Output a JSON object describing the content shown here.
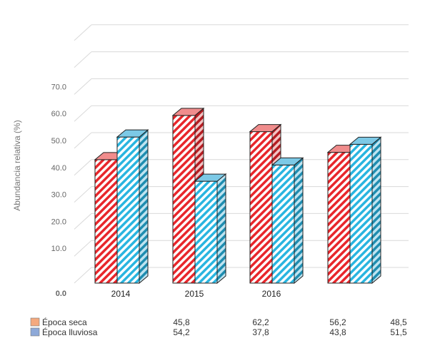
{
  "chart_data": {
    "type": "bar",
    "ylabel": "Abundancia relativa (%)",
    "categories": [
      "2014",
      "2015",
      "2016",
      ""
    ],
    "y_tick_labels": [
      "0.0",
      "10.0",
      "20.0",
      "30.0",
      "40.0",
      "50.0",
      "60.0",
      "70.0"
    ],
    "ylim": [
      0,
      90
    ],
    "series": [
      {
        "name": "Época seca",
        "values": [
          45.8,
          62.2,
          56.2,
          48.5
        ],
        "value_labels": [
          "45,8",
          "62,2",
          "56,2",
          "48,5"
        ],
        "color": "#e8262b",
        "legend_color": "#f4a97e"
      },
      {
        "name": "Época lluviosa",
        "values": [
          54.2,
          37.8,
          43.8,
          51.5
        ],
        "value_labels": [
          "54,2",
          "37,8",
          "43,8",
          "51,5"
        ],
        "color": "#29b5e0",
        "legend_color": "#8ea9d8"
      }
    ],
    "grid": true,
    "legend": "bottom-left data table"
  }
}
